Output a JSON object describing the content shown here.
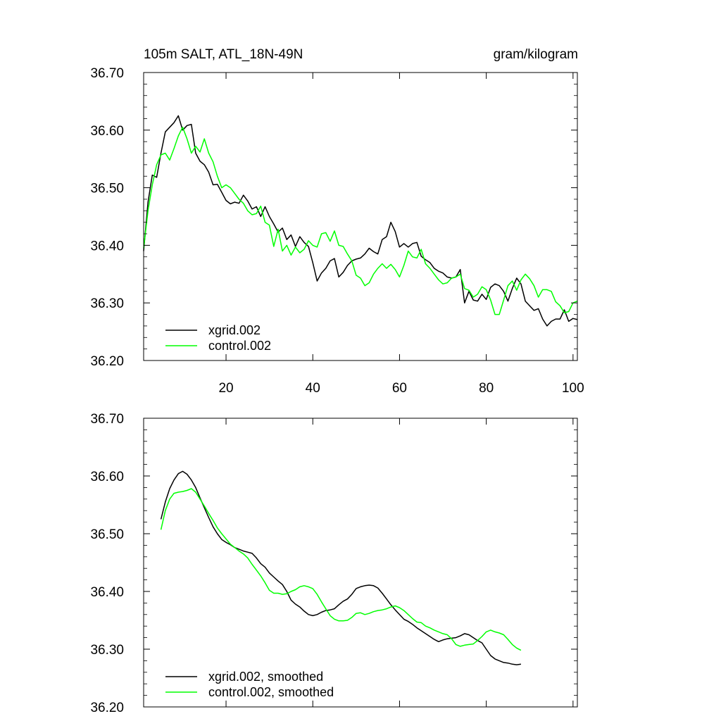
{
  "title_left": "105m SALT, ATL_18N-49N",
  "title_right": "gram/kilogram",
  "chart_data": [
    {
      "type": "line",
      "panel": "top",
      "xlim": [
        1,
        101
      ],
      "ylim": [
        36.2,
        36.7
      ],
      "xticks": [
        20,
        40,
        60,
        80,
        100
      ],
      "xtick_labels": [
        "20",
        "40",
        "60",
        "80",
        "100"
      ],
      "yticks": [
        36.2,
        36.3,
        36.4,
        36.5,
        36.6,
        36.7
      ],
      "ytick_labels": [
        "36.20",
        "36.30",
        "36.40",
        "36.50",
        "36.60",
        "36.70"
      ],
      "legend_position": "bottom-left",
      "series": [
        {
          "name": "xgrid.002",
          "color": "#000000",
          "x_start": 1,
          "values": [
            36.39,
            36.475,
            36.522,
            36.518,
            36.56,
            36.597,
            36.605,
            36.613,
            36.625,
            36.6,
            36.608,
            36.61,
            36.56,
            36.546,
            36.54,
            36.527,
            36.505,
            36.506,
            36.492,
            36.478,
            36.472,
            36.475,
            36.473,
            36.487,
            36.477,
            36.463,
            36.467,
            36.45,
            36.467,
            36.45,
            36.437,
            36.423,
            36.43,
            36.41,
            36.418,
            36.398,
            36.415,
            36.405,
            36.398,
            36.37,
            36.338,
            36.352,
            36.36,
            36.373,
            36.377,
            36.345,
            36.353,
            36.365,
            36.373,
            36.376,
            36.378,
            36.385,
            36.395,
            36.389,
            36.385,
            36.41,
            36.415,
            36.44,
            36.424,
            36.397,
            36.403,
            36.397,
            36.403,
            36.405,
            36.381,
            36.375,
            36.37,
            36.36,
            36.355,
            36.352,
            36.345,
            36.343,
            36.345,
            36.358,
            36.3,
            36.32,
            36.305,
            36.303,
            36.315,
            36.306,
            36.327,
            36.333,
            36.33,
            36.32,
            36.303,
            36.325,
            36.343,
            36.333,
            36.303,
            36.295,
            36.287,
            36.29,
            36.272,
            36.26,
            36.268,
            36.272,
            36.272,
            36.288,
            36.268,
            36.273,
            36.271
          ]
        },
        {
          "name": "control.002",
          "color": "#00ff00",
          "x_start": 1,
          "values": [
            36.395,
            36.46,
            36.505,
            36.54,
            36.557,
            36.56,
            36.548,
            36.568,
            36.59,
            36.605,
            36.585,
            36.56,
            36.572,
            36.562,
            36.585,
            36.56,
            36.545,
            36.52,
            36.5,
            36.505,
            36.5,
            36.49,
            36.48,
            36.473,
            36.46,
            36.453,
            36.455,
            36.468,
            36.44,
            36.435,
            36.398,
            36.428,
            36.39,
            36.4,
            36.383,
            36.397,
            36.387,
            36.393,
            36.408,
            36.4,
            36.397,
            36.42,
            36.422,
            36.407,
            36.425,
            36.4,
            36.398,
            36.385,
            36.373,
            36.348,
            36.343,
            36.33,
            36.335,
            36.35,
            36.36,
            36.368,
            36.36,
            36.367,
            36.358,
            36.345,
            36.365,
            36.39,
            36.38,
            36.378,
            36.393,
            36.368,
            36.36,
            36.35,
            36.34,
            36.333,
            36.335,
            36.343,
            36.345,
            36.35,
            36.325,
            36.322,
            36.31,
            36.315,
            36.328,
            36.323,
            36.305,
            36.28,
            36.28,
            36.305,
            36.33,
            36.338,
            36.322,
            36.34,
            36.35,
            36.342,
            36.33,
            36.31,
            36.323,
            36.323,
            36.32,
            36.302,
            36.295,
            36.283,
            36.285,
            36.3,
            36.303
          ]
        }
      ]
    },
    {
      "type": "line",
      "panel": "bottom",
      "xlim": [
        1,
        101
      ],
      "ylim": [
        36.2,
        36.7
      ],
      "xticks": [
        20,
        40,
        60,
        80,
        100
      ],
      "xtick_labels": [],
      "yticks": [
        36.2,
        36.3,
        36.4,
        36.5,
        36.6,
        36.7
      ],
      "ytick_labels": [
        "36.20",
        "36.30",
        "36.40",
        "36.50",
        "36.60",
        "36.70"
      ],
      "legend_position": "bottom-left",
      "series": [
        {
          "name": "xgrid.002, smoothed",
          "color": "#000000",
          "x_start": 5,
          "values": [
            36.525,
            36.555,
            36.578,
            36.593,
            36.604,
            36.608,
            36.603,
            36.593,
            36.58,
            36.562,
            36.545,
            36.528,
            36.512,
            36.5,
            36.49,
            36.485,
            36.481,
            36.476,
            36.473,
            36.47,
            36.468,
            36.466,
            36.458,
            36.448,
            36.442,
            36.432,
            36.425,
            36.418,
            36.412,
            36.4,
            36.385,
            36.378,
            36.373,
            36.366,
            36.36,
            36.358,
            36.36,
            36.364,
            36.367,
            36.368,
            36.37,
            36.377,
            36.383,
            36.387,
            36.395,
            36.405,
            36.408,
            36.41,
            36.411,
            36.41,
            36.406,
            36.397,
            36.387,
            36.377,
            36.368,
            36.36,
            36.352,
            36.348,
            36.343,
            36.337,
            36.332,
            36.327,
            36.322,
            36.317,
            36.313,
            36.316,
            36.318,
            36.319,
            36.32,
            36.323,
            36.327,
            36.325,
            36.32,
            36.315,
            36.311,
            36.3,
            36.289,
            36.283,
            36.28,
            36.277,
            36.276,
            36.274,
            36.273,
            36.274
          ]
        },
        {
          "name": "control.002, smoothed",
          "color": "#00ff00",
          "x_start": 5,
          "values": [
            36.507,
            36.54,
            36.56,
            36.57,
            36.572,
            36.573,
            36.575,
            36.578,
            36.572,
            36.56,
            36.548,
            36.535,
            36.523,
            36.51,
            36.5,
            36.491,
            36.482,
            36.476,
            36.47,
            36.465,
            36.458,
            36.447,
            36.437,
            36.427,
            36.415,
            36.402,
            36.397,
            36.397,
            36.395,
            36.396,
            36.4,
            36.403,
            36.408,
            36.41,
            36.408,
            36.405,
            36.395,
            36.382,
            36.37,
            36.358,
            36.352,
            36.349,
            36.349,
            36.35,
            36.355,
            36.362,
            36.363,
            36.36,
            36.362,
            36.365,
            36.367,
            36.368,
            36.37,
            36.373,
            36.375,
            36.372,
            36.367,
            36.36,
            36.353,
            36.347,
            36.346,
            36.34,
            36.337,
            36.333,
            36.33,
            36.327,
            36.325,
            36.318,
            36.308,
            36.305,
            36.307,
            36.308,
            36.309,
            36.315,
            36.322,
            36.33,
            36.333,
            36.33,
            36.328,
            36.325,
            36.317,
            36.308,
            36.302,
            36.298
          ]
        }
      ]
    }
  ]
}
